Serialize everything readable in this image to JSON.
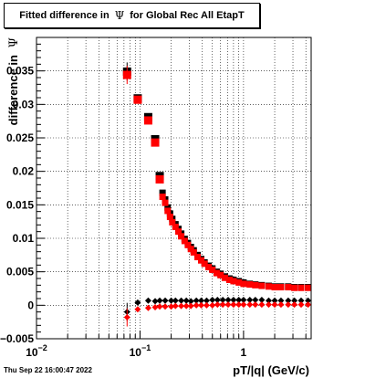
{
  "chart_data": {
    "type": "scatter",
    "title_prefix": "Fitted difference in",
    "title_symbol": "Ψ",
    "title_suffix": "for Global Rec All EtapT",
    "ylabel_prefix": "difference in",
    "ylabel_symbol": "Ψ",
    "xlabel": "pT/|q| (GeV/c)",
    "x_scale": "log",
    "xlim": [
      0.01,
      4.5
    ],
    "ylim": [
      -0.005,
      0.04
    ],
    "grid": true,
    "x_ticks": [
      {
        "value": 0.01,
        "label": "10",
        "sup": "−2"
      },
      {
        "value": 0.1,
        "label": "10",
        "sup": "−1"
      },
      {
        "value": 1,
        "label": "1",
        "sup": ""
      }
    ],
    "y_ticks": [
      {
        "value": -0.005,
        "label": "−0.005"
      },
      {
        "value": 0,
        "label": "0"
      },
      {
        "value": 0.005,
        "label": "0.005"
      },
      {
        "value": 0.01,
        "label": "0.01"
      },
      {
        "value": 0.015,
        "label": "0.015"
      },
      {
        "value": 0.02,
        "label": "0.02"
      },
      {
        "value": 0.025,
        "label": "0.025"
      },
      {
        "value": 0.03,
        "label": "0.03"
      },
      {
        "value": 0.035,
        "label": "0.035"
      }
    ],
    "series": [
      {
        "color": "#000000",
        "marker": "square",
        "x": [
          0.075,
          0.095,
          0.12,
          0.14,
          0.155,
          0.165,
          0.175,
          0.185,
          0.195,
          0.205,
          0.22,
          0.235,
          0.25,
          0.27,
          0.29,
          0.31,
          0.33,
          0.36,
          0.39,
          0.42,
          0.46,
          0.5,
          0.55,
          0.6,
          0.66,
          0.73,
          0.8,
          0.9,
          1.0,
          1.15,
          1.3,
          1.5,
          1.75,
          2.0,
          2.3,
          2.7,
          3.1,
          3.6,
          4.2
        ],
        "y": [
          0.0349,
          0.0309,
          0.0281,
          0.0248,
          0.0193,
          0.0168,
          0.0158,
          0.0146,
          0.0137,
          0.0129,
          0.0121,
          0.0114,
          0.0107,
          0.0099,
          0.0093,
          0.0087,
          0.0082,
          0.0075,
          0.0069,
          0.0064,
          0.0059,
          0.0055,
          0.005,
          0.0047,
          0.0043,
          0.004,
          0.0038,
          0.0036,
          0.0034,
          0.0032,
          0.0031,
          0.003,
          0.0029,
          0.0028,
          0.0028,
          0.0028,
          0.0027,
          0.0027,
          0.0027
        ]
      },
      {
        "color": "#ff0000",
        "marker": "square",
        "x": [
          0.075,
          0.095,
          0.12,
          0.14,
          0.155,
          0.165,
          0.175,
          0.185,
          0.195,
          0.205,
          0.22,
          0.235,
          0.25,
          0.27,
          0.29,
          0.31,
          0.33,
          0.36,
          0.39,
          0.42,
          0.46,
          0.5,
          0.55,
          0.6,
          0.66,
          0.73,
          0.8,
          0.9,
          1.0,
          1.15,
          1.3,
          1.5,
          1.75,
          2.0,
          2.3,
          2.7,
          3.1,
          3.6,
          4.2
        ],
        "y": [
          0.0344,
          0.0307,
          0.0276,
          0.0243,
          0.0188,
          0.0162,
          0.0153,
          0.0141,
          0.0132,
          0.0124,
          0.0117,
          0.011,
          0.0103,
          0.0096,
          0.009,
          0.0084,
          0.0079,
          0.0072,
          0.0067,
          0.0062,
          0.0057,
          0.0053,
          0.0048,
          0.0045,
          0.0041,
          0.0038,
          0.0036,
          0.0034,
          0.0032,
          0.0031,
          0.003,
          0.0029,
          0.0028,
          0.0027,
          0.0027,
          0.0027,
          0.0026,
          0.0026,
          0.0026
        ]
      },
      {
        "color": "#000000",
        "marker": "diamond",
        "x": [
          0.075,
          0.095,
          0.12,
          0.14,
          0.155,
          0.175,
          0.2,
          0.22,
          0.25,
          0.28,
          0.31,
          0.35,
          0.39,
          0.44,
          0.5,
          0.56,
          0.63,
          0.71,
          0.8,
          0.9,
          1.0,
          1.15,
          1.3,
          1.5,
          1.75,
          2.0,
          2.3,
          2.7,
          3.1,
          3.6,
          4.2
        ],
        "y": [
          -0.001,
          0.0004,
          0.0007,
          0.0006,
          0.0007,
          0.0007,
          0.0007,
          0.0007,
          0.0007,
          0.0007,
          0.0006,
          0.0007,
          0.0007,
          0.0007,
          0.0008,
          0.0008,
          0.0008,
          0.0008,
          0.0008,
          0.0008,
          0.0008,
          0.0008,
          0.0008,
          0.0008,
          0.0007,
          0.0007,
          0.0007,
          0.0007,
          0.0007,
          0.0007,
          0.0007
        ]
      },
      {
        "color": "#ff0000",
        "marker": "diamond",
        "x": [
          0.075,
          0.095,
          0.12,
          0.14,
          0.155,
          0.175,
          0.2,
          0.22,
          0.25,
          0.28,
          0.31,
          0.35,
          0.39,
          0.44,
          0.5,
          0.56,
          0.63,
          0.71,
          0.8,
          0.9,
          1.0,
          1.15,
          1.3,
          1.5,
          1.75,
          2.0,
          2.3,
          2.7,
          3.1,
          3.6,
          4.2
        ],
        "y": [
          -0.0018,
          -0.0006,
          -0.0004,
          -0.0003,
          -0.0002,
          -0.0002,
          -0.0002,
          -0.0001,
          -0.0001,
          -0.0001,
          -0.0001,
          0.0,
          0.0,
          0.0,
          0.0,
          0.0001,
          0.0001,
          0.0001,
          0.0001,
          0.0001,
          0.0001,
          0.0001,
          0.0001,
          0.0001,
          0.0001,
          0.0001,
          0.0001,
          0.0001,
          0.0001,
          0.0001,
          0.0001
        ]
      }
    ]
  },
  "footer": {
    "timestamp": "Thu Sep 22 16:00:47 2022"
  }
}
